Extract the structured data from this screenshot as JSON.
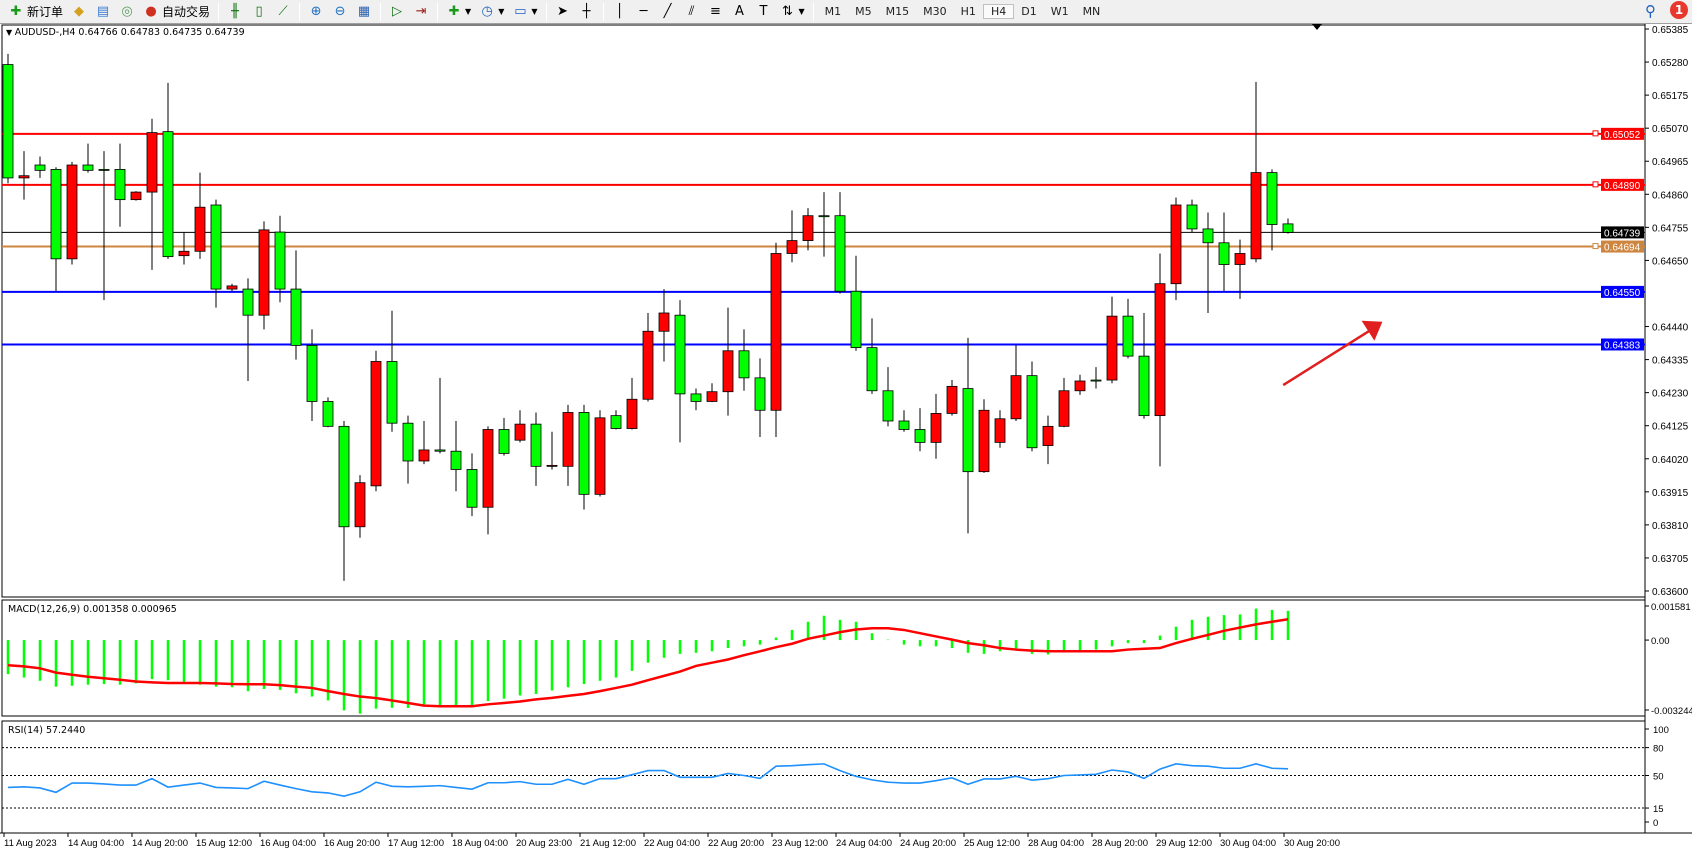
{
  "toolbar": {
    "new_order": "新订单",
    "auto_trading": "自动交易",
    "icons": [
      "new-order-icon",
      "market-watch-icon",
      "navigator-icon",
      "signals-icon",
      "auto-trading-icon",
      "bar-chart-icon",
      "candlestick-icon",
      "line-chart-icon",
      "zoom-in-icon",
      "zoom-out-icon",
      "tile-windows-icon",
      "auto-scroll-icon",
      "chart-shift-icon",
      "indicators-icon",
      "periods-icon",
      "templates-icon",
      "cursor-icon",
      "crosshair-icon",
      "vertical-line-icon",
      "horizontal-line-icon",
      "trendline-icon",
      "equidistant-channel-icon",
      "fibonacci-icon",
      "text-icon",
      "text-label-icon",
      "arrows-icon"
    ],
    "timeframes": [
      "M1",
      "M5",
      "M15",
      "M30",
      "H1",
      "H4",
      "D1",
      "W1",
      "MN"
    ],
    "active_timeframe": "H4",
    "notification_count": "1"
  },
  "chart_header": "AUDUSD-,H4  0.64766 0.64783 0.64735 0.64739",
  "colors": {
    "bull": "#ff0000",
    "bear": "#00ff00",
    "resistance": "#ff0000",
    "support": "#0000ff",
    "bid": "#000000",
    "orange_line": "#cd853f",
    "macd_hist": "#00ff00",
    "macd_signal": "#ff0000",
    "rsi": "#1e90ff"
  },
  "chart_data": [
    {
      "type": "candlestick",
      "symbol": "AUDUSD-",
      "timeframe": "H4",
      "ylim": [
        0.636,
        0.65385
      ],
      "y_ticks": [
        "0.65385",
        "0.65280",
        "0.65175",
        "0.65070",
        "0.64965",
        "0.64860",
        "0.64755",
        "0.64650",
        "0.64440",
        "0.64335",
        "0.64230",
        "0.64125",
        "0.64020",
        "0.63915",
        "0.63810",
        "0.63705",
        "0.63600"
      ],
      "x_labels": [
        "11 Aug 2023",
        "14 Aug 04:00",
        "14 Aug 20:00",
        "15 Aug 12:00",
        "16 Aug 04:00",
        "16 Aug 20:00",
        "17 Aug 12:00",
        "18 Aug 04:00",
        "20 Aug 23:00",
        "21 Aug 12:00",
        "22 Aug 04:00",
        "22 Aug 20:00",
        "23 Aug 12:00",
        "24 Aug 04:00",
        "24 Aug 20:00",
        "25 Aug 12:00",
        "28 Aug 04:00",
        "28 Aug 20:00",
        "29 Aug 12:00",
        "30 Aug 04:00",
        "30 Aug 20:00"
      ],
      "ohlc": [
        [
          0.65272,
          0.65306,
          0.64895,
          0.64912
        ],
        [
          0.64912,
          0.64997,
          0.64843,
          0.64919
        ],
        [
          0.64953,
          0.6498,
          0.64912,
          0.64936
        ],
        [
          0.64939,
          0.64946,
          0.64552,
          0.64655
        ],
        [
          0.64655,
          0.64963,
          0.64637,
          0.64953
        ],
        [
          0.64953,
          0.65021,
          0.64929,
          0.64936
        ],
        [
          0.64939,
          0.64997,
          0.64524,
          0.64936
        ],
        [
          0.64939,
          0.65021,
          0.64757,
          0.64843
        ],
        [
          0.64843,
          0.6487,
          0.6484,
          0.64867
        ],
        [
          0.64867,
          0.651,
          0.6462,
          0.65056
        ],
        [
          0.65059,
          0.65214,
          0.64655,
          0.64662
        ],
        [
          0.64665,
          0.6474,
          0.64637,
          0.64679
        ],
        [
          0.64679,
          0.64929,
          0.64655,
          0.64819
        ],
        [
          0.64826,
          0.64843,
          0.645,
          0.64559
        ],
        [
          0.64559,
          0.64576,
          0.64552,
          0.64569
        ],
        [
          0.64559,
          0.64593,
          0.64267,
          0.64476
        ],
        [
          0.64476,
          0.64774,
          0.64431,
          0.64747
        ],
        [
          0.6474,
          0.64792,
          0.64517,
          0.64559
        ],
        [
          0.64559,
          0.64682,
          0.64335,
          0.6438
        ],
        [
          0.6438,
          0.64431,
          0.6414,
          0.64202
        ],
        [
          0.64202,
          0.64215,
          0.6412,
          0.64123
        ],
        [
          0.64123,
          0.6414,
          0.63632,
          0.63804
        ],
        [
          0.63804,
          0.63968,
          0.63769,
          0.63944
        ],
        [
          0.63934,
          0.64363,
          0.63917,
          0.64329
        ],
        [
          0.64329,
          0.6449,
          0.64106,
          0.64133
        ],
        [
          0.64133,
          0.64157,
          0.63941,
          0.64013
        ],
        [
          0.64013,
          0.6414,
          0.64003,
          0.64048
        ],
        [
          0.64048,
          0.64277,
          0.64037,
          0.64044
        ],
        [
          0.64044,
          0.6414,
          0.63917,
          0.63986
        ],
        [
          0.63986,
          0.64037,
          0.63838,
          0.63866
        ],
        [
          0.63866,
          0.64123,
          0.6378,
          0.64113
        ],
        [
          0.64113,
          0.6415,
          0.6403,
          0.64037
        ],
        [
          0.64079,
          0.64174,
          0.64072,
          0.6413
        ],
        [
          0.6413,
          0.64167,
          0.63934,
          0.63996
        ],
        [
          0.63996,
          0.64106,
          0.63986,
          0.63999
        ],
        [
          0.63996,
          0.64191,
          0.63934,
          0.64167
        ],
        [
          0.64167,
          0.64191,
          0.63859,
          0.63907
        ],
        [
          0.63907,
          0.64174,
          0.639,
          0.6415
        ],
        [
          0.64157,
          0.64174,
          0.64113,
          0.64116
        ],
        [
          0.64116,
          0.64277,
          0.64113,
          0.64209
        ],
        [
          0.64209,
          0.64483,
          0.64202,
          0.64425
        ],
        [
          0.64425,
          0.64559,
          0.64329,
          0.64483
        ],
        [
          0.64476,
          0.64524,
          0.64072,
          0.64226
        ],
        [
          0.64226,
          0.64243,
          0.64174,
          0.64202
        ],
        [
          0.64202,
          0.6426,
          0.642,
          0.64233
        ],
        [
          0.64233,
          0.645,
          0.64157,
          0.64363
        ],
        [
          0.64363,
          0.64431,
          0.64236,
          0.64277
        ],
        [
          0.64277,
          0.64339,
          0.64089,
          0.64174
        ],
        [
          0.64174,
          0.64706,
          0.64089,
          0.64672
        ],
        [
          0.64672,
          0.64809,
          0.64644,
          0.64713
        ],
        [
          0.64713,
          0.64816,
          0.64682,
          0.64792
        ],
        [
          0.64792,
          0.64867,
          0.64662,
          0.64789
        ],
        [
          0.64792,
          0.64867,
          0.64545,
          0.64552
        ],
        [
          0.64552,
          0.64665,
          0.64363,
          0.64373
        ],
        [
          0.64373,
          0.64466,
          0.64226,
          0.64236
        ],
        [
          0.64236,
          0.64311,
          0.64123,
          0.6414
        ],
        [
          0.6414,
          0.64174,
          0.64106,
          0.64113
        ],
        [
          0.64113,
          0.64181,
          0.64044,
          0.64072
        ],
        [
          0.64072,
          0.64226,
          0.6402,
          0.64164
        ],
        [
          0.64164,
          0.6427,
          0.64157,
          0.6425
        ],
        [
          0.64243,
          0.64404,
          0.63783,
          0.63979
        ],
        [
          0.63979,
          0.64209,
          0.63975,
          0.64174
        ],
        [
          0.64072,
          0.64174,
          0.64055,
          0.64147
        ],
        [
          0.64147,
          0.6438,
          0.6414,
          0.64284
        ],
        [
          0.64284,
          0.64329,
          0.64044,
          0.64055
        ],
        [
          0.64062,
          0.64157,
          0.64003,
          0.64123
        ],
        [
          0.64123,
          0.64277,
          0.6412,
          0.64236
        ],
        [
          0.64236,
          0.64287,
          0.64223,
          0.64267
        ],
        [
          0.6427,
          0.64311,
          0.64243,
          0.64267
        ],
        [
          0.6427,
          0.64535,
          0.6426,
          0.64473
        ],
        [
          0.64473,
          0.64528,
          0.64339,
          0.64346
        ],
        [
          0.64346,
          0.64483,
          0.64147,
          0.64157
        ],
        [
          0.64157,
          0.64672,
          0.63996,
          0.64576
        ],
        [
          0.64576,
          0.6485,
          0.64524,
          0.64826
        ],
        [
          0.64826,
          0.64843,
          0.6474,
          0.6475
        ],
        [
          0.6475,
          0.64802,
          0.64483,
          0.64706
        ],
        [
          0.64706,
          0.64802,
          0.64552,
          0.64637
        ],
        [
          0.64637,
          0.64716,
          0.64528,
          0.64672
        ],
        [
          0.64655,
          0.65217,
          0.64644,
          0.64929
        ],
        [
          0.64929,
          0.64939,
          0.64682,
          0.64764
        ],
        [
          0.64766,
          0.64783,
          0.64735,
          0.64739
        ]
      ],
      "hlines": [
        {
          "price": 0.65052,
          "label": "0.65052",
          "kind": "resistance"
        },
        {
          "price": 0.6489,
          "label": "0.64890",
          "kind": "resistance"
        },
        {
          "price": 0.64739,
          "label": "0.64739",
          "kind": "bid"
        },
        {
          "price": 0.64694,
          "label": "0.64694",
          "kind": "orange_line"
        },
        {
          "price": 0.6455,
          "label": "0.64550",
          "kind": "support"
        },
        {
          "price": 0.64383,
          "label": "0.64383",
          "kind": "support"
        }
      ]
    },
    {
      "type": "bar+line",
      "title": "MACD(12,26,9) 0.001358 0.000965",
      "ylim": [
        -0.003244,
        0.001581
      ],
      "y_ticks": [
        "0.001581",
        "0.00",
        "-0.003244"
      ],
      "histogram": [
        -0.00158,
        -0.00174,
        -0.00189,
        -0.00216,
        -0.00212,
        -0.00207,
        -0.00204,
        -0.00207,
        -0.00201,
        -0.00181,
        -0.00186,
        -0.00201,
        -0.00207,
        -0.00216,
        -0.00219,
        -0.00237,
        -0.00227,
        -0.00231,
        -0.00247,
        -0.00262,
        -0.0028,
        -0.00326,
        -0.00341,
        -0.00318,
        -0.00314,
        -0.00315,
        -0.00307,
        -0.0031,
        -0.0031,
        -0.00307,
        -0.00283,
        -0.00272,
        -0.00257,
        -0.0025,
        -0.00234,
        -0.00219,
        -0.00204,
        -0.00189,
        -0.00174,
        -0.00143,
        -0.00105,
        -0.00082,
        -0.00064,
        -0.00059,
        -0.00052,
        -0.00037,
        -0.00029,
        -0.00021,
        0.00012,
        0.00047,
        0.00085,
        0.00113,
        0.00094,
        0.00085,
        0.00032,
        2e-05,
        -0.00021,
        -0.00029,
        -0.00029,
        -0.00037,
        -0.00059,
        -0.00064,
        -0.00052,
        -0.00049,
        -0.00064,
        -0.00067,
        -0.00052,
        -0.00049,
        -0.00044,
        -0.00029,
        -0.00014,
        -0.00014,
        0.00021,
        0.00062,
        0.00094,
        0.00108,
        0.00116,
        0.00119,
        0.00146,
        0.0014,
        0.001358
      ],
      "signal": [
        -0.00117,
        -0.00122,
        -0.00131,
        -0.00151,
        -0.00161,
        -0.0017,
        -0.00177,
        -0.00184,
        -0.00192,
        -0.00196,
        -0.00199,
        -0.00199,
        -0.00199,
        -0.00201,
        -0.00204,
        -0.00205,
        -0.00205,
        -0.00209,
        -0.00216,
        -0.00222,
        -0.00237,
        -0.0025,
        -0.00262,
        -0.00269,
        -0.0028,
        -0.00292,
        -0.00304,
        -0.00307,
        -0.00307,
        -0.00307,
        -0.00298,
        -0.00292,
        -0.00285,
        -0.00275,
        -0.00268,
        -0.00259,
        -0.0025,
        -0.00237,
        -0.00222,
        -0.00207,
        -0.00186,
        -0.00166,
        -0.00146,
        -0.0012,
        -0.00105,
        -0.0009,
        -0.0007,
        -0.00052,
        -0.00033,
        -0.00017,
        6e-05,
        0.00021,
        0.00037,
        0.00049,
        0.00055,
        0.00055,
        0.00047,
        0.00032,
        0.00017,
        2e-05,
        -0.00014,
        -0.00024,
        -0.00037,
        -0.00044,
        -0.00049,
        -0.00052,
        -0.00052,
        -0.00052,
        -0.00052,
        -0.00052,
        -0.00044,
        -0.0004,
        -0.00037,
        -0.00014,
        6e-05,
        0.00024,
        0.00043,
        0.00058,
        0.00073,
        0.00085,
        0.000965
      ]
    },
    {
      "type": "line",
      "title": "RSI(14) 57.2440",
      "ylim": [
        0,
        100
      ],
      "y_ticks": [
        "100",
        "80",
        "50",
        "15",
        "0"
      ],
      "levels": [
        80,
        50,
        15
      ],
      "values": [
        37.2,
        37.8,
        36.6,
        31.9,
        41.9,
        41.9,
        40.9,
        39.7,
        39.7,
        46.6,
        37.5,
        39.7,
        41.9,
        37.2,
        36.6,
        35.9,
        43.8,
        39.7,
        35.9,
        32.5,
        31.3,
        27.8,
        32.5,
        42.8,
        38.4,
        37.8,
        38.4,
        39.1,
        37.2,
        35.3,
        42.2,
        42.2,
        43.4,
        40.6,
        40.6,
        45.9,
        40.6,
        46.6,
        46.6,
        50.9,
        55.3,
        55.3,
        48.1,
        48.1,
        48.1,
        52.2,
        50.0,
        46.9,
        60.0,
        60.6,
        61.6,
        62.5,
        55.3,
        49.1,
        45.3,
        42.8,
        41.9,
        41.9,
        44.4,
        47.5,
        40.6,
        46.3,
        46.3,
        49.1,
        45.0,
        46.6,
        50.0,
        50.6,
        51.3,
        55.9,
        53.8,
        46.9,
        56.9,
        62.5,
        60.6,
        60.0,
        57.8,
        57.8,
        62.5,
        57.8,
        57.244
      ]
    }
  ]
}
